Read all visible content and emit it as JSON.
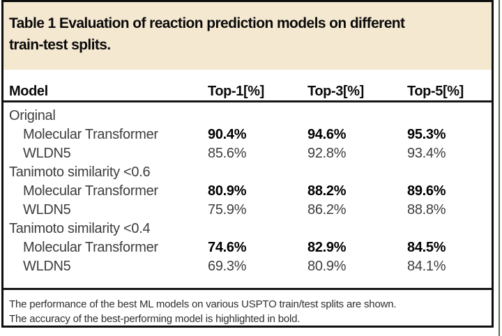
{
  "title_lines": [
    "Table 1 Evaluation of reaction prediction models on different",
    "train-test splits."
  ],
  "columns": {
    "model": "Model",
    "top1": "Top-1[%]",
    "top3": "Top-3[%]",
    "top5": "Top-5[%]"
  },
  "rows": [
    {
      "type": "group",
      "label": "Original"
    },
    {
      "type": "data",
      "model": "Molecular Transformer",
      "top1": "90.4%",
      "top3": "94.6%",
      "top5": "95.3%",
      "bold": true
    },
    {
      "type": "data",
      "model": "WLDN5",
      "top1": "85.6%",
      "top3": "92.8%",
      "top5": "93.4%",
      "bold": false
    },
    {
      "type": "group",
      "label": "Tanimoto similarity <0.6"
    },
    {
      "type": "data",
      "model": "Molecular Transformer",
      "top1": "80.9%",
      "top3": "88.2%",
      "top5": "89.6%",
      "bold": true
    },
    {
      "type": "data",
      "model": "WLDN5",
      "top1": "75.9%",
      "top3": "86.2%",
      "top5": "88.8%",
      "bold": false
    },
    {
      "type": "group",
      "label": "Tanimoto similarity <0.4"
    },
    {
      "type": "data",
      "model": "Molecular Transformer",
      "top1": "74.6%",
      "top3": "82.9%",
      "top5": "84.5%",
      "bold": true
    },
    {
      "type": "data",
      "model": "WLDN5",
      "top1": "69.3%",
      "top3": "80.9%",
      "top5": "84.1%",
      "bold": false
    }
  ],
  "footnote_lines": [
    "The performance of the best ML models on various USPTO train/test splits are shown.",
    "The accuracy of the best-performing model is highlighted in bold."
  ],
  "colors": {
    "banner": "#f5e8d1",
    "border": "#0e0e0e",
    "edge_line": "#4e6e52",
    "bold_text": "#000000",
    "body_text": "#3d3d3d"
  }
}
